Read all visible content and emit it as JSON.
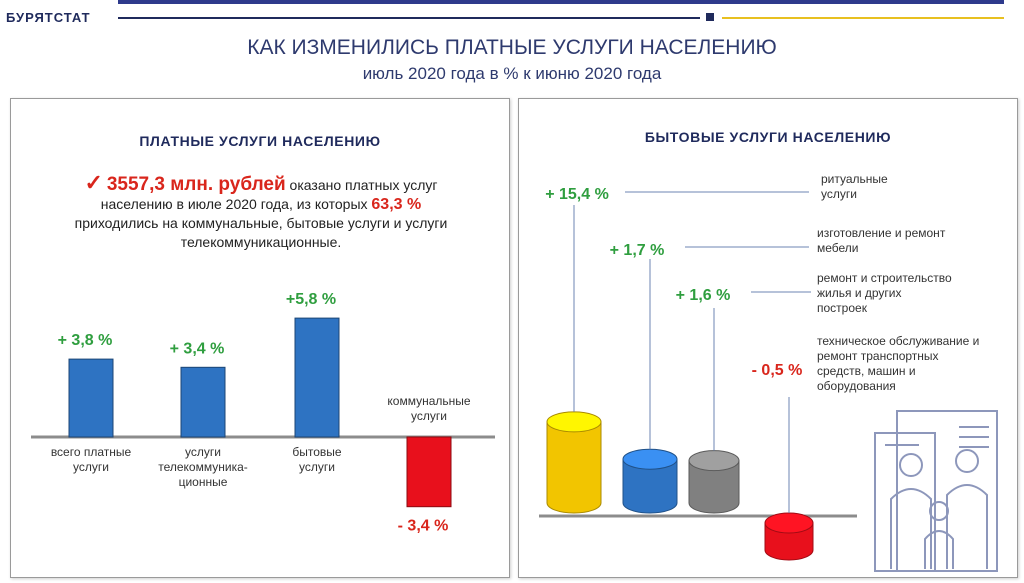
{
  "header": {
    "brand": "БУРЯТСТАТ",
    "title": "КАК ИЗМЕНИЛИСЬ ПЛАТНЫЕ УСЛУГИ НАСЕЛЕНИЮ",
    "subtitle": "июль 2020 года в % к июню 2020 года",
    "colors": {
      "navy": "#1f2a5c",
      "gold": "#e8c020"
    }
  },
  "left_panel": {
    "title": "ПЛАТНЫЕ УСЛУГИ НАСЕЛЕНИЮ",
    "summary": {
      "amount": "3557,3 млн. рублей",
      "text1": " оказано платных  услуг",
      "text2": "населению в июле 2020 года, из которых ",
      "share": "63,3 %",
      "text3": "приходились на коммунальные,    бытовые услуги и  услуги",
      "text4": "телекоммуникационные."
    }
  },
  "right_panel": {
    "title": "БЫТОВЫЕ УСЛУГИ НАСЕЛЕНИЮ"
  },
  "chart_data": [
    {
      "type": "bar",
      "title": "ПЛАТНЫЕ УСЛУГИ НАСЕЛЕНИЮ",
      "categories": [
        [
          "всего платные",
          "услуги"
        ],
        [
          "услуги",
          "телекоммуника-",
          "ционные"
        ],
        [
          "бытовые",
          "услуги"
        ],
        [
          "коммунальные",
          "услуги"
        ]
      ],
      "values": [
        3.8,
        3.4,
        5.8,
        -3.4
      ],
      "value_labels": [
        "+ 3,8 %",
        "+ 3,4 %",
        "+5,8 %",
        "- 3,4 %"
      ],
      "colors": [
        "#2e73c2",
        "#2e73c2",
        "#2e73c2",
        "#e8101c"
      ],
      "unit": "%"
    },
    {
      "type": "bar",
      "title": "БЫТОВЫЕ УСЛУГИ НАСЕЛЕНИЮ",
      "categories": [
        [
          "ритуальные",
          "услуги"
        ],
        [
          "изготовление и ремонт",
          "мебели"
        ],
        [
          "ремонт и строительство",
          "жилья и других",
          "построек"
        ],
        [
          "техническое обслуживание и",
          "ремонт транспортных",
          "средств, машин и",
          "оборудования"
        ]
      ],
      "values": [
        15.4,
        1.7,
        1.6,
        -0.5
      ],
      "value_labels": [
        "+ 15,4 %",
        "+ 1,7 %",
        "+ 1,6 %",
        "- 0,5 %"
      ],
      "colors": [
        "#f2c500",
        "#2e73c2",
        "#808080",
        "#e8101c"
      ],
      "unit": "%"
    }
  ]
}
